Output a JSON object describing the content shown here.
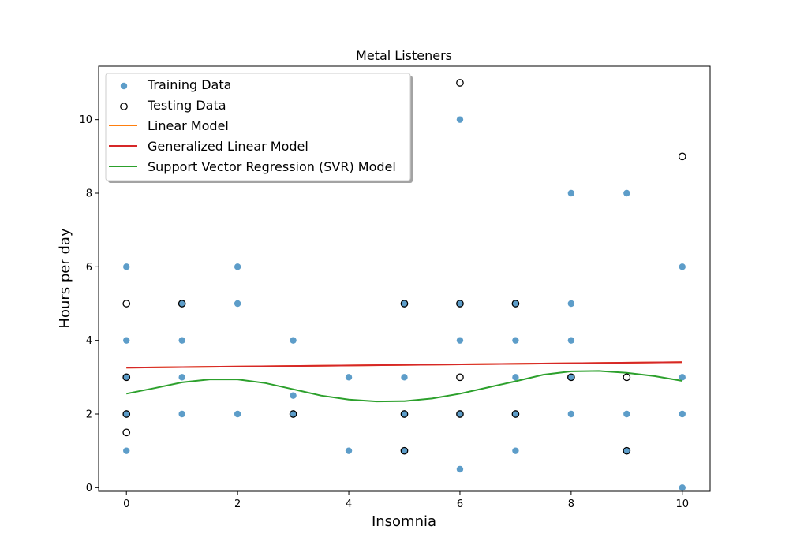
{
  "chart_data": {
    "type": "scatter",
    "title": "Metal Listeners",
    "xlabel": "Insomnia",
    "ylabel": "Hours per day",
    "xlim": [
      -0.5,
      10.5
    ],
    "ylim": [
      -0.1,
      11.45
    ],
    "xticks": [
      0,
      2,
      4,
      6,
      8,
      10
    ],
    "yticks": [
      0,
      2,
      4,
      6,
      8,
      10
    ],
    "grid": false,
    "legend_position": "top-left",
    "series": [
      {
        "name": "Training Data",
        "kind": "scatter",
        "color": "#1f77b4",
        "points": [
          [
            0,
            6
          ],
          [
            0,
            4
          ],
          [
            0,
            3
          ],
          [
            0,
            2
          ],
          [
            0,
            1
          ],
          [
            1,
            5
          ],
          [
            1,
            4
          ],
          [
            1,
            3
          ],
          [
            1,
            2
          ],
          [
            2,
            6
          ],
          [
            2,
            5
          ],
          [
            2,
            2
          ],
          [
            3,
            4
          ],
          [
            3,
            2.5
          ],
          [
            3,
            2
          ],
          [
            4,
            3
          ],
          [
            4,
            1
          ],
          [
            5,
            5
          ],
          [
            5,
            3
          ],
          [
            5,
            2
          ],
          [
            5,
            1
          ],
          [
            6,
            10
          ],
          [
            6,
            5
          ],
          [
            6,
            4
          ],
          [
            6,
            2
          ],
          [
            6,
            0.5
          ],
          [
            7,
            5
          ],
          [
            7,
            4
          ],
          [
            7,
            3
          ],
          [
            7,
            2
          ],
          [
            7,
            1
          ],
          [
            8,
            8
          ],
          [
            8,
            5
          ],
          [
            8,
            4
          ],
          [
            8,
            3
          ],
          [
            8,
            2
          ],
          [
            9,
            8
          ],
          [
            9,
            2
          ],
          [
            9,
            1
          ],
          [
            10,
            6
          ],
          [
            10,
            3
          ],
          [
            10,
            2
          ],
          [
            10,
            0
          ]
        ]
      },
      {
        "name": "Testing Data",
        "kind": "scatter-open",
        "color": "#000000",
        "points": [
          [
            0,
            5
          ],
          [
            0,
            3
          ],
          [
            0,
            2
          ],
          [
            0,
            1.5
          ],
          [
            1,
            5
          ],
          [
            3,
            2
          ],
          [
            5,
            5
          ],
          [
            5,
            2
          ],
          [
            5,
            1
          ],
          [
            6,
            11
          ],
          [
            6,
            5
          ],
          [
            6,
            3
          ],
          [
            6,
            2
          ],
          [
            7,
            5
          ],
          [
            7,
            2
          ],
          [
            8,
            3
          ],
          [
            9,
            3
          ],
          [
            9,
            1
          ],
          [
            10,
            9
          ]
        ]
      },
      {
        "name": "Linear Model",
        "kind": "line",
        "color": "#ff7f0e",
        "x": [
          0,
          10
        ],
        "y": [
          3.26,
          3.41
        ]
      },
      {
        "name": "Generalized Linear Model",
        "kind": "line",
        "color": "#d62728",
        "x": [
          0,
          10
        ],
        "y": [
          3.26,
          3.41
        ]
      },
      {
        "name": "Support Vector Regression (SVR) Model",
        "kind": "line",
        "color": "#2ca02c",
        "x": [
          0,
          0.5,
          1,
          1.5,
          2,
          2.5,
          3,
          3.5,
          4,
          4.5,
          5,
          5.5,
          6,
          6.5,
          7,
          7.5,
          8,
          8.5,
          9,
          9.5,
          10
        ],
        "y": [
          2.55,
          2.7,
          2.86,
          2.94,
          2.94,
          2.84,
          2.67,
          2.5,
          2.39,
          2.34,
          2.35,
          2.42,
          2.55,
          2.72,
          2.89,
          3.07,
          3.16,
          3.17,
          3.12,
          3.03,
          2.9
        ]
      }
    ]
  }
}
